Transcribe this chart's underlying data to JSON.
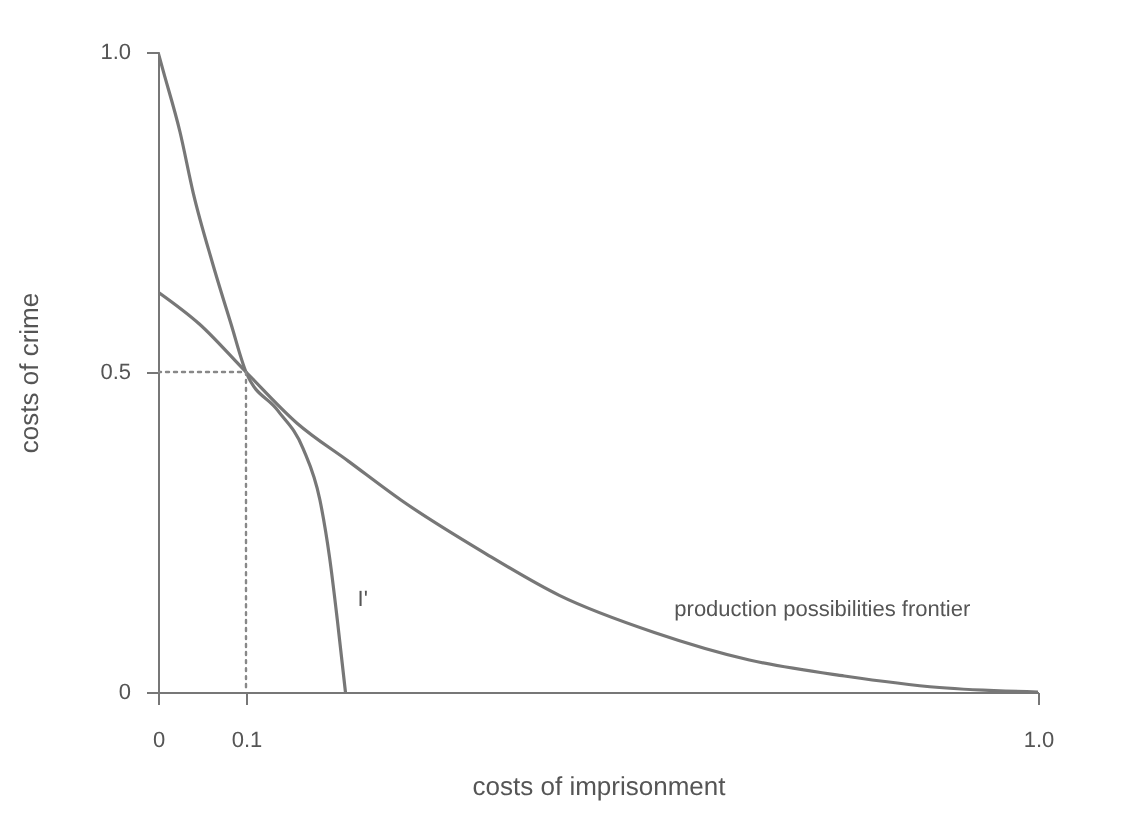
{
  "chart_data": {
    "type": "line",
    "xlabel": "costs of imprisonment",
    "ylabel": "costs of crime",
    "xlim": [
      0,
      1
    ],
    "ylim": [
      0,
      1
    ],
    "xticks": [
      0,
      0.1,
      {
        "value": 1,
        "label": "1.0"
      }
    ],
    "yticks": [
      0,
      0.5,
      {
        "value": 1,
        "label": "1.0"
      }
    ],
    "grid": false,
    "line_style": "solid",
    "series": [
      {
        "name": "I'",
        "color": "#777777",
        "x": [
          0,
          0.006,
          0.025,
          0.04,
          0.062,
          0.083,
          0.1,
          0.136,
          0.165,
          0.184,
          0.195,
          0.204,
          0.213
        ],
        "values": [
          1.0,
          0.97,
          0.875,
          0.78,
          0.67,
          0.575,
          0.5,
          0.44,
          0.38,
          0.3,
          0.21,
          0.11,
          0
        ]
      },
      {
        "name": "production possibilities frontier",
        "color": "#777777",
        "x": [
          0,
          0.047,
          0.1,
          0.158,
          0.217,
          0.276,
          0.369,
          0.456,
          0.564,
          0.672,
          0.78,
          0.888,
          1.0
        ],
        "values": [
          0.625,
          0.575,
          0.5,
          0.42,
          0.36,
          0.3,
          0.219,
          0.151,
          0.093,
          0.05,
          0.025,
          0.007,
          0
        ]
      },
      {
        "color": "#888888",
        "line_style": "dotted",
        "x": [
          0,
          0.1,
          0.1
        ],
        "values": [
          0.5,
          0.5,
          0
        ]
      }
    ]
  }
}
